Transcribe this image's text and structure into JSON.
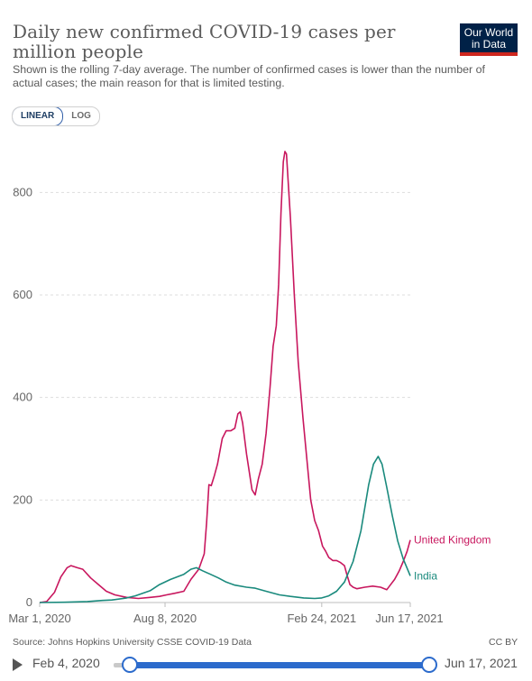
{
  "header": {
    "title": "Daily new confirmed COVID-19 cases per million people",
    "subtitle": "Shown is the rolling 7-day average. The number of confirmed cases is lower than the number of actual cases; the main reason for that is limited testing.",
    "logo_line1": "Our World",
    "logo_line2": "in Data"
  },
  "controls": {
    "scale_options": [
      "LINEAR",
      "LOG"
    ],
    "scale_selected": "LINEAR"
  },
  "colors": {
    "uk": "#c8175e",
    "india": "#1a8a7d",
    "logo_bg": "#002147",
    "logo_accent": "#ce261e",
    "slider": "#2c6bcc"
  },
  "chart_data": {
    "type": "line",
    "title": "Daily new confirmed COVID-19 cases per million people",
    "xlabel": "",
    "ylabel": "",
    "ylim": [
      0,
      900
    ],
    "yticks": [
      0,
      200,
      400,
      600,
      800
    ],
    "xlim": [
      "2020-03-01",
      "2021-06-17"
    ],
    "xtick_labels": [
      {
        "date": "2020-03-01",
        "label": "Mar 1, 2020"
      },
      {
        "date": "2020-08-08",
        "label": "Aug 8, 2020"
      },
      {
        "date": "2021-02-24",
        "label": "Feb 24, 2021"
      },
      {
        "date": "2021-06-17",
        "label": "Jun 17, 2021"
      }
    ],
    "grid": "horizontal-dashed",
    "series": [
      {
        "name": "United Kingdom",
        "points": [
          [
            "2020-03-01",
            0
          ],
          [
            "2020-03-10",
            2
          ],
          [
            "2020-03-20",
            20
          ],
          [
            "2020-03-28",
            50
          ],
          [
            "2020-04-05",
            68
          ],
          [
            "2020-04-10",
            72
          ],
          [
            "2020-04-18",
            68
          ],
          [
            "2020-04-25",
            65
          ],
          [
            "2020-05-05",
            48
          ],
          [
            "2020-05-15",
            35
          ],
          [
            "2020-05-25",
            22
          ],
          [
            "2020-06-05",
            15
          ],
          [
            "2020-06-20",
            10
          ],
          [
            "2020-07-05",
            8
          ],
          [
            "2020-07-20",
            10
          ],
          [
            "2020-08-01",
            12
          ],
          [
            "2020-08-10",
            15
          ],
          [
            "2020-08-20",
            18
          ],
          [
            "2020-09-01",
            22
          ],
          [
            "2020-09-10",
            45
          ],
          [
            "2020-09-20",
            65
          ],
          [
            "2020-09-27",
            95
          ],
          [
            "2020-09-30",
            155
          ],
          [
            "2020-10-03",
            230
          ],
          [
            "2020-10-06",
            228
          ],
          [
            "2020-10-10",
            248
          ],
          [
            "2020-10-14",
            270
          ],
          [
            "2020-10-20",
            320
          ],
          [
            "2020-10-25",
            335
          ],
          [
            "2020-10-31",
            335
          ],
          [
            "2020-11-05",
            340
          ],
          [
            "2020-11-09",
            368
          ],
          [
            "2020-11-12",
            372
          ],
          [
            "2020-11-15",
            350
          ],
          [
            "2020-11-20",
            290
          ],
          [
            "2020-11-27",
            220
          ],
          [
            "2020-12-01",
            210
          ],
          [
            "2020-12-05",
            240
          ],
          [
            "2020-12-10",
            270
          ],
          [
            "2020-12-15",
            330
          ],
          [
            "2020-12-20",
            420
          ],
          [
            "2020-12-24",
            500
          ],
          [
            "2020-12-28",
            540
          ],
          [
            "2020-12-31",
            620
          ],
          [
            "2021-01-03",
            760
          ],
          [
            "2021-01-06",
            860
          ],
          [
            "2021-01-08",
            880
          ],
          [
            "2021-01-10",
            875
          ],
          [
            "2021-01-15",
            750
          ],
          [
            "2021-01-20",
            600
          ],
          [
            "2021-01-25",
            470
          ],
          [
            "2021-01-31",
            360
          ],
          [
            "2021-02-05",
            280
          ],
          [
            "2021-02-10",
            200
          ],
          [
            "2021-02-15",
            160
          ],
          [
            "2021-02-20",
            140
          ],
          [
            "2021-02-25",
            110
          ],
          [
            "2021-03-01",
            100
          ],
          [
            "2021-03-05",
            88
          ],
          [
            "2021-03-10",
            82
          ],
          [
            "2021-03-15",
            82
          ],
          [
            "2021-03-20",
            78
          ],
          [
            "2021-03-25",
            72
          ],
          [
            "2021-03-28",
            55
          ],
          [
            "2021-04-01",
            35
          ],
          [
            "2021-04-05",
            30
          ],
          [
            "2021-04-10",
            27
          ],
          [
            "2021-04-20",
            30
          ],
          [
            "2021-04-30",
            32
          ],
          [
            "2021-05-10",
            30
          ],
          [
            "2021-05-18",
            25
          ],
          [
            "2021-05-22",
            33
          ],
          [
            "2021-05-28",
            45
          ],
          [
            "2021-06-03",
            62
          ],
          [
            "2021-06-08",
            80
          ],
          [
            "2021-06-13",
            100
          ],
          [
            "2021-06-17",
            122
          ]
        ]
      },
      {
        "name": "India",
        "points": [
          [
            "2020-03-01",
            0
          ],
          [
            "2020-04-01",
            0.5
          ],
          [
            "2020-05-01",
            2
          ],
          [
            "2020-05-20",
            4
          ],
          [
            "2020-06-01",
            5
          ],
          [
            "2020-06-20",
            9
          ],
          [
            "2020-07-01",
            13
          ],
          [
            "2020-07-20",
            23
          ],
          [
            "2020-08-01",
            35
          ],
          [
            "2020-08-15",
            45
          ],
          [
            "2020-09-01",
            55
          ],
          [
            "2020-09-10",
            65
          ],
          [
            "2020-09-17",
            68
          ],
          [
            "2020-09-25",
            62
          ],
          [
            "2020-10-05",
            55
          ],
          [
            "2020-10-15",
            48
          ],
          [
            "2020-10-25",
            40
          ],
          [
            "2020-11-05",
            34
          ],
          [
            "2020-11-20",
            30
          ],
          [
            "2020-12-01",
            28
          ],
          [
            "2020-12-15",
            22
          ],
          [
            "2021-01-01",
            15
          ],
          [
            "2021-01-15",
            12
          ],
          [
            "2021-02-01",
            9
          ],
          [
            "2021-02-15",
            8
          ],
          [
            "2021-02-24",
            9
          ],
          [
            "2021-03-05",
            13
          ],
          [
            "2021-03-15",
            22
          ],
          [
            "2021-03-25",
            40
          ],
          [
            "2021-04-05",
            80
          ],
          [
            "2021-04-15",
            140
          ],
          [
            "2021-04-25",
            230
          ],
          [
            "2021-05-01",
            270
          ],
          [
            "2021-05-07",
            285
          ],
          [
            "2021-05-12",
            270
          ],
          [
            "2021-05-18",
            225
          ],
          [
            "2021-05-25",
            170
          ],
          [
            "2021-06-01",
            120
          ],
          [
            "2021-06-08",
            85
          ],
          [
            "2021-06-17",
            52
          ]
        ]
      }
    ],
    "legend": "inline-end-labels"
  },
  "footer": {
    "source": "Source: Johns Hopkins University CSSE COVID-19 Data",
    "license": "CC BY"
  },
  "timeline": {
    "start_label": "Feb 4, 2020",
    "end_label": "Jun 17, 2021",
    "start_fraction": 0.05,
    "end_fraction": 1.0
  }
}
